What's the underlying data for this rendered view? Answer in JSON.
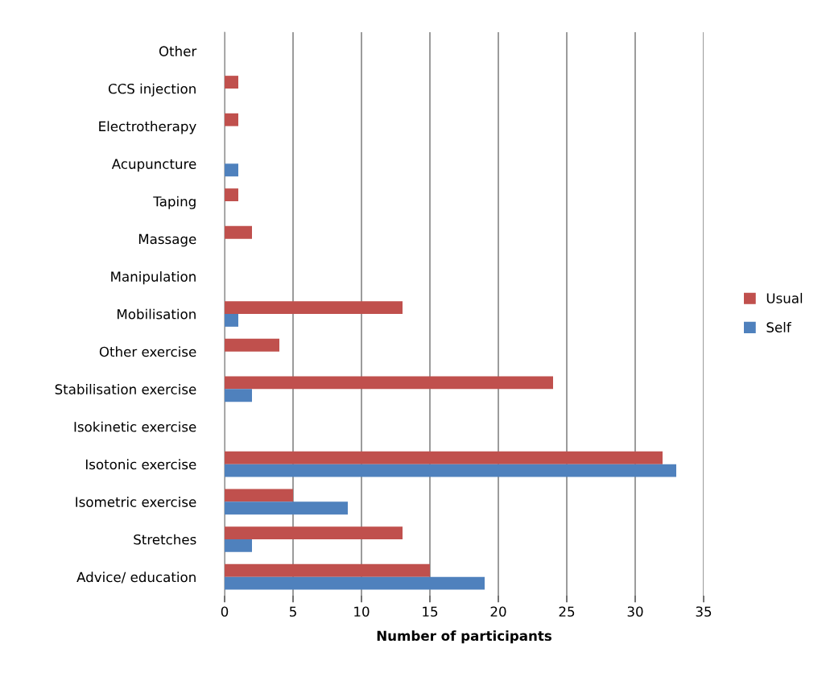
{
  "chart_data": {
    "type": "bar",
    "orientation": "horizontal",
    "xlabel": "Number of participants",
    "categories": [
      "Other",
      "CCS injection",
      "Electrotherapy",
      "Acupuncture",
      "Taping",
      "Massage",
      "Manipulation",
      "Mobilisation",
      "Other exercise",
      "Stabilisation exercise",
      "Isokinetic exercise",
      "Isotonic exercise",
      "Isometric exercise",
      "Stretches",
      "Advice/ education"
    ],
    "series": [
      {
        "name": "Usual",
        "color": "#c0504d",
        "values": [
          0,
          1,
          1,
          0,
          1,
          2,
          0,
          13,
          4,
          24,
          0,
          32,
          5,
          13,
          15
        ]
      },
      {
        "name": "Self",
        "color": "#4f81bd",
        "values": [
          0,
          0,
          0,
          1,
          0,
          0,
          0,
          1,
          0,
          2,
          0,
          33,
          9,
          2,
          19
        ]
      }
    ],
    "xlim": [
      0,
      35
    ],
    "xticks": [
      0,
      5,
      10,
      15,
      20,
      25,
      30,
      35
    ],
    "grid": "x",
    "legend": "right"
  }
}
